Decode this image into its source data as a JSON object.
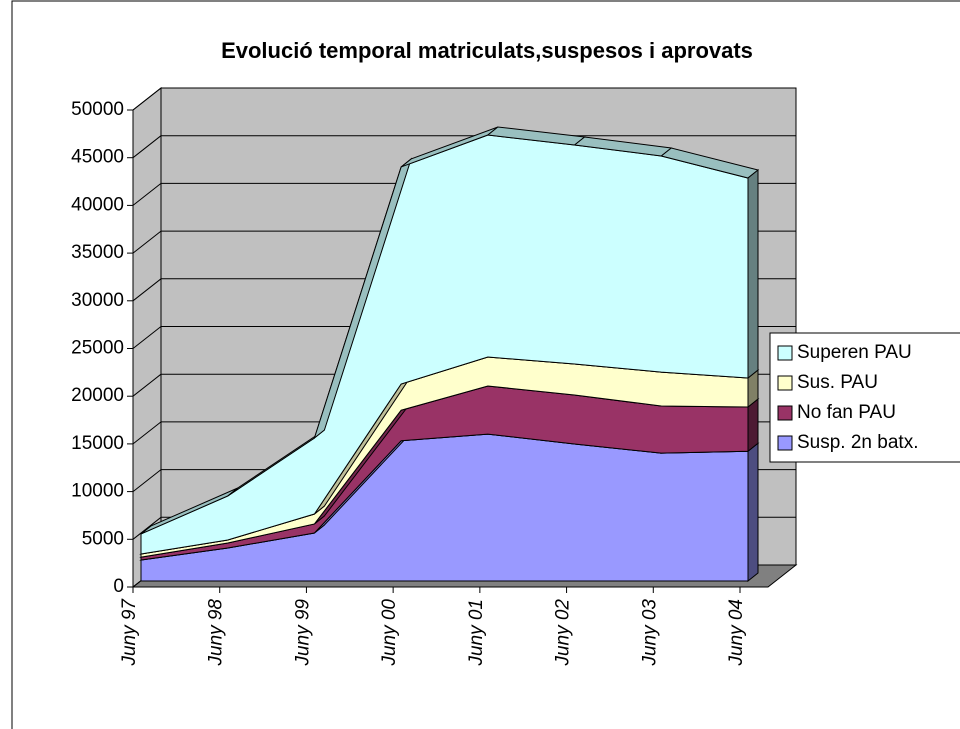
{
  "chart_data": {
    "type": "area3d_stacked",
    "title": "Evolució temporal matriculats,suspesos i aprovats",
    "categories": [
      "Juny 97",
      "Juny 98",
      "Juny 99",
      "Juny 00",
      "Juny 01",
      "Juny 02",
      "Juny 03",
      "Juny 04"
    ],
    "series": [
      {
        "name": "Susp. 2n batx.",
        "color": "#9999ff",
        "values": [
          2200,
          3460,
          5030,
          14700,
          15400,
          14360,
          13400,
          13600
        ]
      },
      {
        "name": "No fan PAU",
        "color": "#993366",
        "values": [
          300,
          520,
          950,
          3200,
          5040,
          5140,
          4940,
          4640
        ]
      },
      {
        "name": "Sus. PAU",
        "color": "#ffffcc",
        "values": [
          330,
          320,
          1040,
          2750,
          3040,
          3250,
          3560,
          3040
        ]
      },
      {
        "name": "Superen PAU",
        "color": "#ccffff",
        "values": [
          2100,
          4610,
          7970,
          22750,
          23270,
          22950,
          22650,
          20960
        ]
      }
    ],
    "ylim": [
      0,
      50000
    ],
    "yticks": [
      0,
      5000,
      10000,
      15000,
      20000,
      25000,
      30000,
      35000,
      40000,
      45000,
      50000
    ],
    "stacked": true,
    "grid": true,
    "legend": "right"
  }
}
